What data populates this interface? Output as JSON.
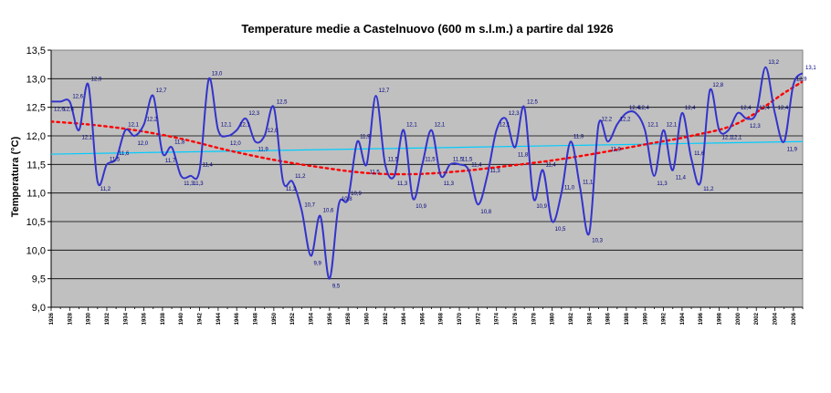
{
  "chart_data": {
    "type": "line",
    "title": "Temperature medie a Castelnuovo (600 m s.l.m.) a partire dal 1926",
    "xlabel": "",
    "ylabel": "Temperatura (°C)",
    "ylim": [
      9.0,
      13.5
    ],
    "yticks": [
      "9,0",
      "9,5",
      "10,0",
      "10,5",
      "11,0",
      "11,5",
      "12,0",
      "12,5",
      "13,0",
      "13,5"
    ],
    "xticks": [
      "1926",
      "1928",
      "1930",
      "1932",
      "1934",
      "1936",
      "1938",
      "1940",
      "1942",
      "1944",
      "1946",
      "1948",
      "1950",
      "1952",
      "1954",
      "1956",
      "1958",
      "1960",
      "1962",
      "1964",
      "1966",
      "1968",
      "1970",
      "1972",
      "1974",
      "1976",
      "1978",
      "1980",
      "1982",
      "1984",
      "1986",
      "1988",
      "1990",
      "1992",
      "1994",
      "1996",
      "1998",
      "2000",
      "2002",
      "2004",
      "2006"
    ],
    "grid": true,
    "background": "#c0c0c0",
    "series": [
      {
        "color": "#3333cc",
        "x": [
          1926,
          1927,
          1928,
          1929,
          1930,
          1931,
          1932,
          1933,
          1934,
          1935,
          1936,
          1937,
          1938,
          1939,
          1940,
          1941,
          1942,
          1943,
          1944,
          1945,
          1946,
          1947,
          1948,
          1949,
          1950,
          1951,
          1952,
          1953,
          1954,
          1955,
          1956,
          1957,
          1958,
          1959,
          1960,
          1961,
          1962,
          1963,
          1964,
          1965,
          1966,
          1967,
          1968,
          1969,
          1970,
          1971,
          1972,
          1973,
          1974,
          1975,
          1976,
          1977,
          1978,
          1979,
          1980,
          1981,
          1982,
          1983,
          1984,
          1985,
          1986,
          1987,
          1988,
          1989,
          1990,
          1991,
          1992,
          1993,
          1994,
          1995,
          1996,
          1997,
          1998,
          1999,
          2000,
          2001,
          2002,
          2003,
          2004,
          2005,
          2006,
          2007
        ],
        "values": [
          12.6,
          12.6,
          12.6,
          12.1,
          12.9,
          11.2,
          11.5,
          11.6,
          12.1,
          12.0,
          12.2,
          12.7,
          11.7,
          11.8,
          11.3,
          11.3,
          11.4,
          13.0,
          12.1,
          12.0,
          12.1,
          12.3,
          11.9,
          12.0,
          12.5,
          11.2,
          11.2,
          10.7,
          9.9,
          10.6,
          9.5,
          10.8,
          10.9,
          11.9,
          11.5,
          12.7,
          11.5,
          11.3,
          12.1,
          10.9,
          11.5,
          12.1,
          11.3,
          11.5,
          11.5,
          11.4,
          10.8,
          11.3,
          12.1,
          12.3,
          11.8,
          12.5,
          10.9,
          11.4,
          10.5,
          11.0,
          11.9,
          11.1,
          10.3,
          12.2,
          11.9,
          12.2,
          12.4,
          12.4,
          12.1,
          11.3,
          12.1,
          11.4,
          12.4,
          11.6,
          11.2,
          12.8,
          12.1,
          12.1,
          12.4,
          12.3,
          12.4,
          13.2,
          12.4,
          11.9,
          12.9,
          13.1
        ],
        "labels": [
          "12,6",
          "12,6",
          "12,6",
          "12,1",
          "12,9",
          "11,2",
          "11,5",
          "11,6",
          "12,1",
          "12,0",
          "12,2",
          "12,7",
          "11,7",
          "11,8",
          "11,3",
          "11,3",
          "11,4",
          "13,0",
          "12,1",
          "12,0",
          "12,1",
          "12,3",
          "11,9",
          "12,0",
          "12,5",
          "11,2",
          "11,2",
          "10,7",
          "9,9",
          "10,6",
          "9,5",
          "10,8",
          "10,9",
          "11,9",
          "11,5",
          "12,7",
          "11,5",
          "11,3",
          "12,1",
          "10,9",
          "11,5",
          "12,1",
          "11,3",
          "11,5",
          "11,5",
          "11,4",
          "10,8",
          "11,3",
          "12,1",
          "12,3",
          "11,8",
          "12,5",
          "10,9",
          "11,4",
          "10,5",
          "11,0",
          "11,9",
          "11,1",
          "10,3",
          "12,2",
          "11,9",
          "12,2",
          "12,4",
          "12,4",
          "12,1",
          "11,3",
          "12,1",
          "11,4",
          "12,4",
          "11,6",
          "11,2",
          "12,8",
          "12,1",
          "12,1",
          "12,4",
          "12,3",
          "12,4",
          "13,2",
          "12,4",
          "11,9",
          "12,9",
          "13,1"
        ]
      },
      {
        "color": "#00ccff",
        "x": [
          1926,
          2007
        ],
        "values": [
          11.68,
          11.9
        ]
      },
      {
        "color": "#ff0000",
        "style": "dotted",
        "x": [
          1926,
          1930,
          1935,
          1940,
          1945,
          1950,
          1955,
          1960,
          1965,
          1970,
          1975,
          1980,
          1985,
          1990,
          1995,
          2000,
          2005,
          2007
        ],
        "values": [
          12.25,
          12.2,
          12.1,
          11.95,
          11.75,
          11.58,
          11.45,
          11.35,
          11.33,
          11.38,
          11.47,
          11.57,
          11.7,
          11.85,
          12.0,
          12.22,
          12.75,
          12.95
        ]
      }
    ]
  }
}
